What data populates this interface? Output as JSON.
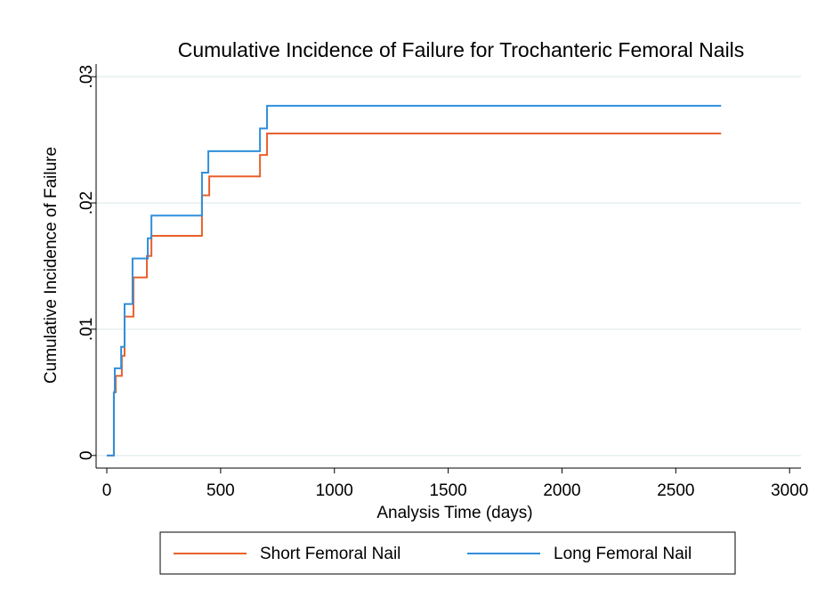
{
  "chart_data": {
    "type": "step",
    "title": "Cumulative Incidence of Failure for Trochanteric Femoral Nails",
    "x_label": "Analysis Time (days)",
    "y_label": "Cumulative Incidence of Failure",
    "series": [
      {
        "name": "Short Femoral Nail",
        "color": "#e8602c",
        "x": [
          0,
          31,
          39,
          66,
          78,
          117,
          176,
          196,
          418,
          450,
          673,
          704,
          2699
        ],
        "values": [
          0,
          0.005,
          0.0063,
          0.0079,
          0.011,
          0.0141,
          0.0158,
          0.0174,
          0.0206,
          0.0221,
          0.0238,
          0.0255,
          0.0255
        ]
      },
      {
        "name": "Long Femoral Nail",
        "color": "#2f8fdc",
        "x": [
          0,
          31,
          35,
          63,
          78,
          113,
          180,
          196,
          418,
          446,
          673,
          704,
          2699
        ],
        "values": [
          0,
          0.005,
          0.0069,
          0.0086,
          0.012,
          0.0156,
          0.0172,
          0.019,
          0.0224,
          0.0241,
          0.0259,
          0.0277,
          0.0277
        ]
      }
    ],
    "xlim": [
      -47,
      3050
    ],
    "xticks": [
      0,
      500,
      1000,
      1500,
      2000,
      2500,
      3000
    ],
    "ylim": [
      -0.001,
      0.031
    ],
    "yticks": [
      0,
      {
        "value": 0.01,
        "label": ".01"
      },
      {
        "value": 0.02,
        "label": ".02"
      },
      {
        "value": 0.03,
        "label": ".03"
      }
    ],
    "grid": true,
    "legend": "bottom"
  }
}
